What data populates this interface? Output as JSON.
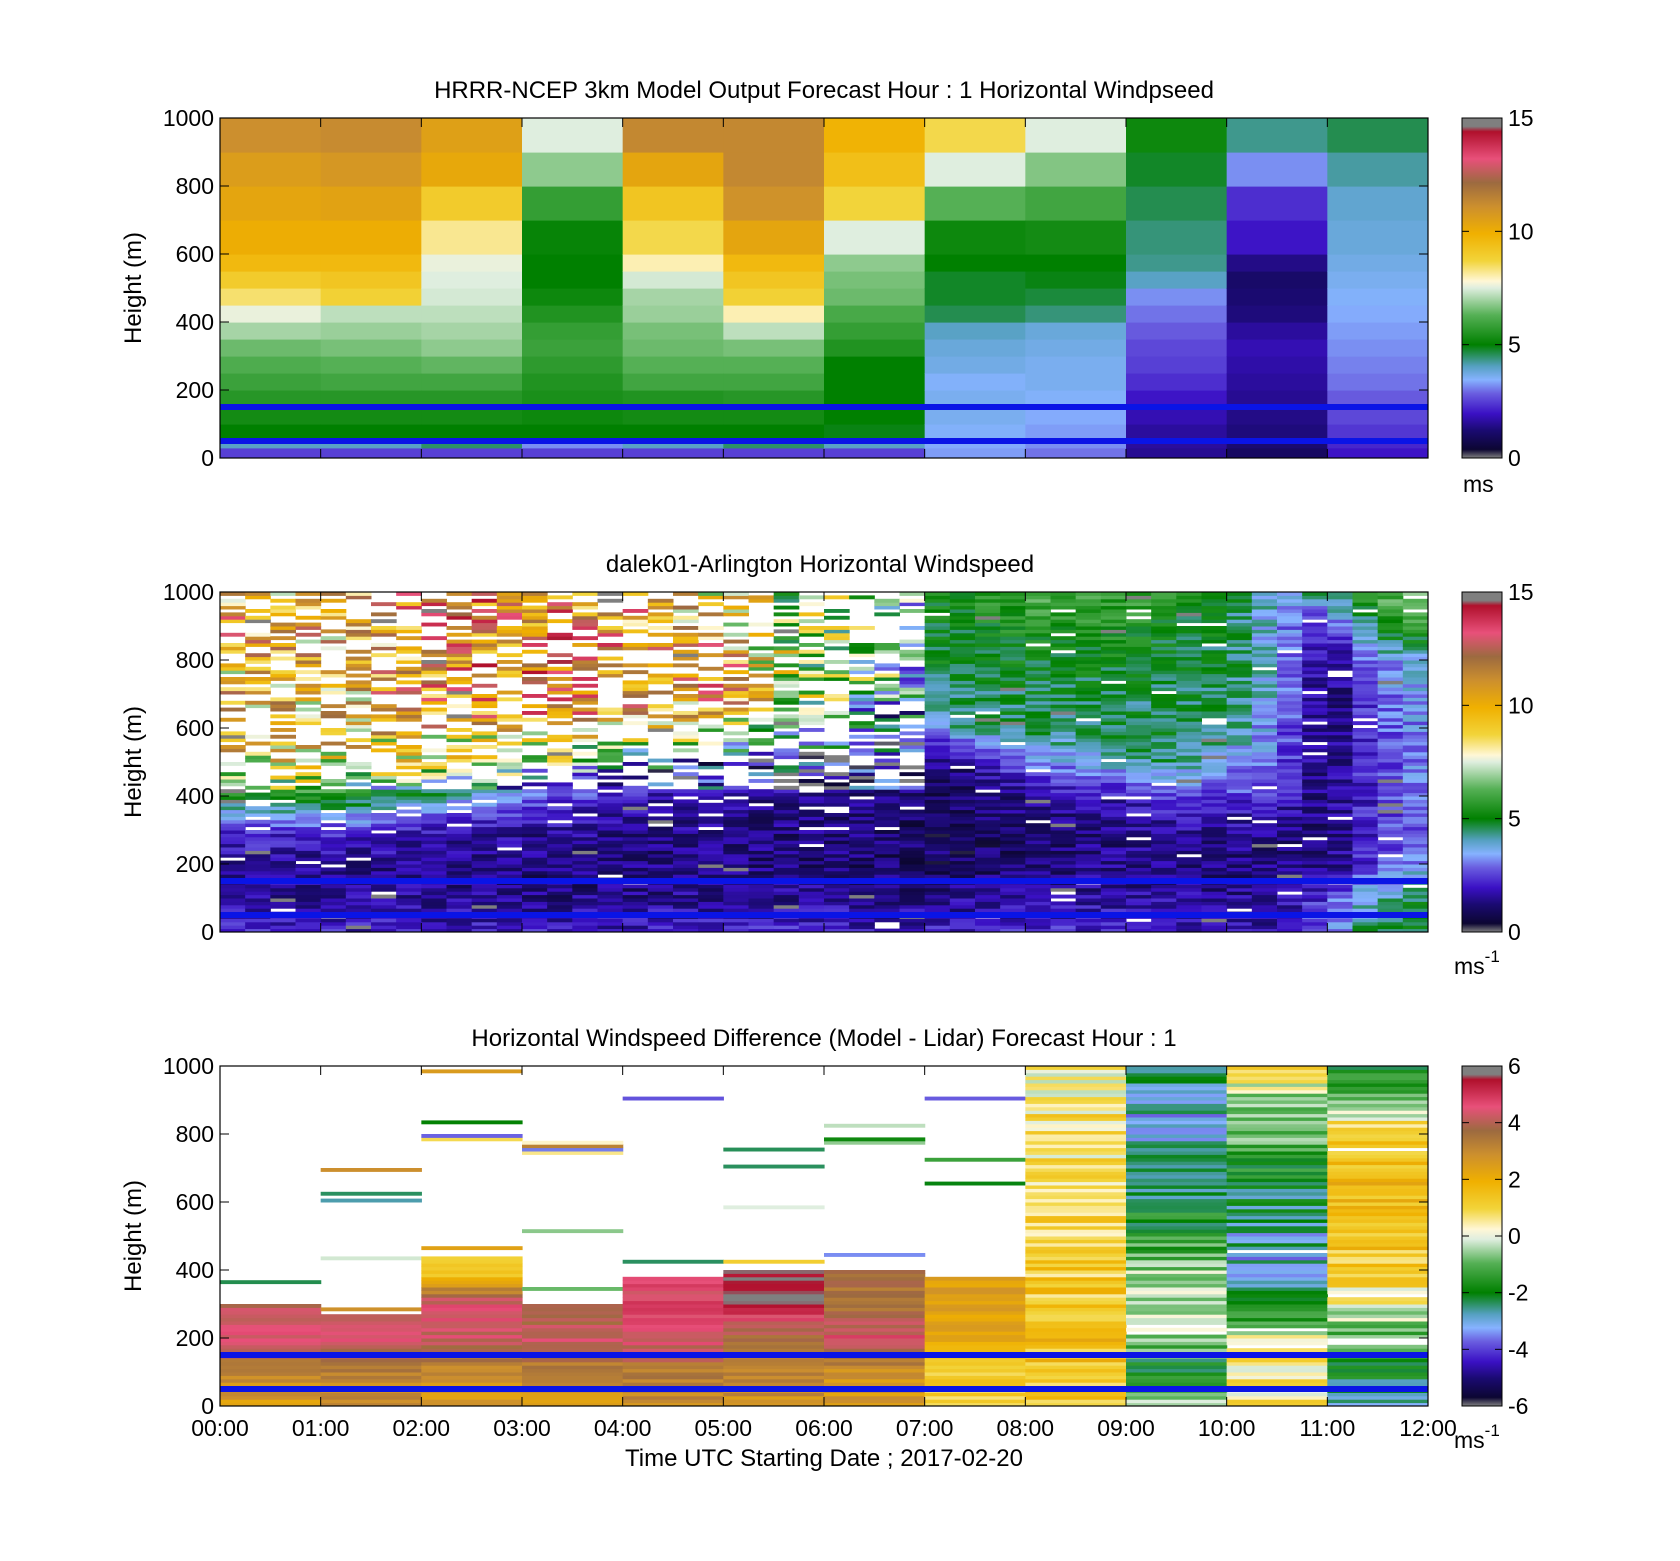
{
  "figure": {
    "xticks": [
      "00:00",
      "01:00",
      "02:00",
      "03:00",
      "04:00",
      "05:00",
      "06:00",
      "07:00",
      "08:00",
      "09:00",
      "10:00",
      "11:00",
      "12:00"
    ],
    "xlabel": "Time UTC  Starting Date ; 2017-02-20"
  },
  "chart_data": [
    {
      "type": "heatmap",
      "title": "HRRR-NCEP 3km Model Output   Forecast Hour : 1 Horizontal Windpseed",
      "ylabel": "Height (m)",
      "xlim": [
        "00:00",
        "12:00"
      ],
      "ylim": [
        0,
        1000
      ],
      "yticks": [
        "0",
        "200",
        "400",
        "600",
        "800",
        "1000"
      ],
      "colorbar": {
        "min": 0,
        "max": 15,
        "ticks": [
          "0",
          "5",
          "10",
          "15"
        ],
        "unit": "ms"
      },
      "reference_lines_m": [
        150,
        50
      ],
      "line_color": "#0a14e6",
      "x_hours": [
        0,
        1,
        2,
        3,
        4,
        5,
        6,
        7,
        8,
        9,
        10,
        11,
        12
      ],
      "height_edges_m": [
        0,
        30,
        50,
        100,
        150,
        200,
        250,
        300,
        350,
        400,
        450,
        500,
        550,
        600,
        700,
        800,
        900,
        1000
      ],
      "values": [
        [
          2.5,
          4.0,
          5.0,
          5.3,
          5.6,
          5.9,
          6.2,
          6.5,
          7.0,
          7.6,
          8.4,
          9.0,
          9.6,
          10.0,
          10.3,
          10.6,
          11.1
        ],
        [
          2.5,
          4.0,
          5.0,
          5.3,
          5.6,
          6.0,
          6.3,
          6.6,
          6.9,
          7.2,
          8.8,
          9.2,
          9.6,
          10.0,
          10.4,
          10.8,
          11.2
        ],
        [
          2.5,
          4.5,
          5.0,
          5.3,
          5.6,
          6.0,
          6.4,
          6.8,
          7.0,
          7.2,
          7.4,
          7.5,
          7.6,
          8.2,
          9.0,
          10.2,
          10.5
        ],
        [
          2.5,
          3.2,
          5.0,
          5.2,
          5.4,
          5.5,
          5.7,
          5.9,
          5.8,
          5.5,
          5.2,
          5.0,
          5.0,
          5.1,
          5.8,
          6.8,
          7.5
        ],
        [
          2.5,
          4.0,
          5.0,
          5.3,
          5.5,
          6.0,
          6.3,
          6.5,
          6.6,
          6.9,
          7.0,
          7.4,
          8.0,
          8.6,
          9.2,
          10.3,
          11.3
        ],
        [
          2.5,
          4.5,
          5.0,
          5.3,
          5.6,
          6.0,
          6.3,
          6.6,
          7.2,
          8.0,
          8.8,
          9.2,
          9.6,
          10.3,
          11.0,
          11.3,
          11.3
        ],
        [
          2.5,
          4.0,
          4.9,
          5.0,
          5.0,
          5.0,
          5.0,
          5.5,
          5.8,
          6.1,
          6.5,
          6.6,
          6.8,
          7.5,
          8.7,
          9.4,
          9.8
        ],
        [
          3.3,
          3.4,
          3.5,
          3.6,
          3.6,
          3.5,
          3.7,
          3.8,
          4.0,
          4.6,
          4.8,
          4.8,
          5.0,
          5.2,
          6.3,
          7.5,
          8.6
        ],
        [
          3.0,
          3.2,
          3.3,
          3.4,
          3.5,
          3.6,
          3.6,
          3.7,
          3.8,
          4.4,
          4.7,
          4.9,
          5.0,
          5.3,
          6.0,
          6.7,
          7.5
        ],
        [
          1.5,
          1.6,
          1.6,
          1.8,
          2.0,
          2.3,
          2.5,
          2.6,
          2.8,
          3.0,
          3.2,
          4.0,
          4.3,
          4.4,
          4.6,
          4.8,
          5.2
        ],
        [
          1.0,
          1.2,
          1.3,
          1.4,
          1.5,
          1.6,
          1.7,
          1.8,
          1.6,
          1.3,
          1.2,
          1.1,
          1.4,
          2.0,
          2.3,
          3.2,
          4.3
        ],
        [
          2.0,
          2.2,
          2.4,
          2.6,
          2.8,
          3.0,
          3.1,
          3.2,
          3.3,
          3.4,
          3.5,
          3.6,
          3.7,
          3.8,
          3.9,
          4.2,
          4.6
        ]
      ]
    },
    {
      "type": "heatmap",
      "title": "dalek01-Arlington  Horizontal Windspeed",
      "ylabel": "Height (m)",
      "xlim": [
        "00:00",
        "12:00"
      ],
      "ylim": [
        0,
        1000
      ],
      "yticks": [
        "0",
        "200",
        "400",
        "600",
        "800",
        "1000"
      ],
      "colorbar": {
        "min": 0,
        "max": 15,
        "ticks": [
          "0",
          "5",
          "10",
          "15"
        ],
        "unit": "ms",
        "unit_exp": "-1"
      },
      "reference_lines_m": [
        150,
        50
      ],
      "line_color": "#0a14e6",
      "time_step_h": 0.25,
      "height_step_m": 10,
      "profile_hours": [
        0,
        0.5,
        1,
        1.5,
        2,
        2.5,
        3,
        3.5,
        4,
        4.5,
        5,
        5.5,
        6,
        6.5,
        7,
        7.5,
        8,
        8.5,
        9,
        9.5,
        10,
        10.5,
        11,
        11.5,
        12
      ],
      "profile_heights_m": [
        0,
        100,
        200,
        300,
        400,
        500,
        600,
        700,
        800,
        900,
        1000
      ],
      "profiles": [
        [
          2.2,
          1.8,
          1.5,
          2.5,
          5.0,
          8.5,
          9.5,
          9.5,
          9.5,
          10.5,
          10.5
        ],
        [
          2.2,
          1.7,
          1.5,
          2.3,
          5.0,
          8.5,
          9.5,
          9.5,
          9.5,
          10.0,
          10.0
        ],
        [
          2.2,
          1.7,
          1.5,
          2.5,
          5.5,
          8.5,
          9.5,
          9.5,
          9.5,
          10.0,
          10.0
        ],
        [
          2.0,
          1.6,
          1.5,
          2.2,
          5.0,
          8.0,
          9.5,
          10.0,
          10.0,
          10.5,
          10.5
        ],
        [
          2.0,
          1.5,
          1.4,
          2.0,
          4.5,
          8.0,
          9.5,
          10.5,
          11.0,
          11.0,
          11.0
        ],
        [
          2.0,
          1.5,
          1.3,
          1.8,
          3.5,
          7.0,
          9.5,
          11.5,
          11.5,
          11.5,
          11.5
        ],
        [
          2.0,
          1.4,
          1.2,
          1.6,
          3.0,
          6.5,
          10.0,
          12.0,
          12.0,
          11.5,
          11.0
        ],
        [
          2.0,
          1.4,
          1.2,
          1.5,
          2.5,
          5.5,
          10.0,
          12.0,
          12.0,
          11.5,
          11.0
        ],
        [
          2.0,
          1.4,
          1.2,
          1.4,
          2.0,
          4.5,
          9.0,
          11.5,
          11.5,
          11.0,
          10.5
        ],
        [
          2.2,
          1.5,
          1.3,
          1.5,
          1.8,
          3.0,
          8.0,
          11.0,
          11.0,
          10.0,
          9.5
        ],
        [
          2.2,
          1.5,
          1.3,
          1.4,
          1.6,
          2.5,
          8.0,
          11.0,
          11.0,
          9.5,
          9.0
        ],
        [
          2.2,
          1.5,
          1.2,
          1.3,
          1.5,
          2.0,
          7.0,
          9.0,
          8.0,
          7.5,
          7.5
        ],
        [
          2.2,
          1.5,
          1.2,
          1.3,
          1.5,
          1.8,
          4.0,
          6.5,
          6.5,
          6.5,
          6.5
        ],
        [
          2.0,
          1.4,
          1.1,
          1.2,
          1.3,
          1.5,
          2.8,
          5.5,
          6.0,
          6.0,
          6.0
        ],
        [
          2.0,
          1.4,
          1.0,
          1.0,
          1.1,
          1.2,
          2.5,
          4.5,
          5.0,
          5.0,
          5.0
        ],
        [
          2.2,
          1.5,
          1.0,
          0.9,
          1.0,
          1.5,
          4.5,
          4.5,
          4.8,
          5.0,
          5.5
        ],
        [
          2.2,
          1.5,
          1.2,
          1.0,
          1.5,
          3.0,
          4.6,
          4.7,
          5.0,
          5.5,
          6.0
        ],
        [
          2.2,
          1.6,
          1.3,
          1.2,
          1.8,
          3.5,
          4.6,
          4.6,
          5.0,
          5.5,
          6.0
        ],
        [
          2.2,
          1.6,
          1.4,
          1.4,
          2.0,
          4.0,
          4.8,
          4.6,
          5.0,
          5.5,
          6.0
        ],
        [
          2.0,
          1.6,
          1.4,
          1.6,
          2.5,
          4.5,
          4.8,
          4.5,
          4.8,
          5.0,
          5.5
        ],
        [
          1.8,
          1.5,
          1.3,
          1.5,
          2.5,
          3.5,
          4.5,
          4.6,
          4.8,
          4.8,
          5.0
        ],
        [
          1.6,
          1.5,
          1.3,
          1.5,
          2.2,
          2.8,
          3.0,
          3.5,
          3.5,
          3.4,
          3.5
        ],
        [
          3.0,
          2.5,
          1.3,
          1.2,
          1.2,
          1.2,
          1.1,
          1.0,
          1.2,
          2.0,
          4.5
        ],
        [
          4.8,
          4.0,
          2.5,
          2.4,
          2.5,
          2.6,
          2.6,
          2.8,
          3.3,
          5.0,
          6.0
        ],
        [
          5.0,
          5.0,
          3.5,
          3.0,
          3.1,
          3.2,
          3.3,
          3.5,
          4.0,
          6.0,
          7.0
        ]
      ]
    },
    {
      "type": "heatmap",
      "title": "Horizontal Windspeed Difference (Model - Lidar) Forecast Hour : 1",
      "ylabel": "Height (m)",
      "xlim": [
        "00:00",
        "12:00"
      ],
      "ylim": [
        0,
        1000
      ],
      "yticks": [
        "0",
        "200",
        "400",
        "600",
        "800",
        "1000"
      ],
      "colorbar": {
        "min": -6,
        "max": 6,
        "ticks": [
          "-6",
          "-4",
          "-2",
          "0",
          "2",
          "4",
          "6"
        ],
        "unit": "ms",
        "unit_exp": "-1"
      },
      "reference_lines_m": [
        150,
        50
      ],
      "line_color": "#0a14e6",
      "x_hours": [
        0,
        1,
        2,
        3,
        4,
        5,
        6,
        7,
        8,
        9,
        10,
        11,
        12
      ],
      "height_step_m": 10,
      "filled_top_m": [
        295,
        270,
        440,
        295,
        375,
        400,
        400,
        380,
        1000,
        1000,
        1000,
        1000
      ],
      "profile_heights_m": [
        0,
        100,
        200,
        300,
        400,
        500,
        600,
        700,
        800,
        900,
        1000
      ],
      "profiles": [
        [
          2.5,
          3.0,
          4.5,
          4.0,
          null,
          null,
          null,
          null,
          null,
          null,
          null
        ],
        [
          2.8,
          3.2,
          4.3,
          null,
          null,
          null,
          null,
          null,
          null,
          null,
          null
        ],
        [
          2.5,
          3.0,
          4.2,
          4.5,
          1.0,
          null,
          null,
          null,
          null,
          null,
          null
        ],
        [
          2.6,
          3.1,
          4.3,
          3.5,
          null,
          null,
          null,
          null,
          null,
          null,
          null
        ],
        [
          2.8,
          3.3,
          4.5,
          4.6,
          null,
          null,
          null,
          null,
          null,
          null,
          null
        ],
        [
          2.7,
          3.1,
          3.5,
          5.5,
          5.5,
          null,
          null,
          null,
          null,
          null,
          null
        ],
        [
          2.5,
          2.8,
          4.5,
          3.5,
          3.5,
          null,
          null,
          null,
          null,
          null,
          null
        ],
        [
          1.0,
          1.2,
          2.2,
          2.4,
          null,
          null,
          null,
          null,
          null,
          null,
          null
        ],
        [
          1.5,
          1.4,
          1.6,
          1.3,
          1.2,
          0.8,
          1.0,
          0.6,
          0.9,
          0.6,
          0.4
        ],
        [
          0.5,
          -2.5,
          -0.3,
          -0.2,
          -0.6,
          -1.5,
          -2.2,
          -2.5,
          -3.0,
          -3.1,
          -2.0
        ],
        [
          0.6,
          0.7,
          0.4,
          -2.5,
          -3.0,
          -2.8,
          -2.2,
          -1.8,
          -0.6,
          -0.8,
          1.0
        ],
        [
          -2.5,
          -2.0,
          -1.0,
          0.3,
          1.2,
          1.6,
          1.7,
          1.5,
          1.0,
          -0.3,
          -2.5
        ]
      ]
    }
  ]
}
